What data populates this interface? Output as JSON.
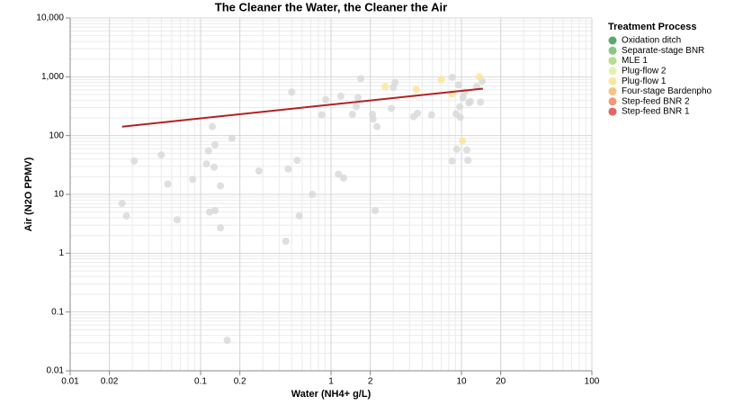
{
  "chart_data": {
    "type": "scatter",
    "title": "The Cleaner the Water, the Cleaner the Air",
    "x_label": "Water (NH4+ g/L)",
    "y_label": "Air (N2O PPMV)",
    "x_log": true,
    "y_log": true,
    "grid": true,
    "minor_grid": true,
    "xlim": [
      0.01,
      100
    ],
    "xticks": [
      0.01,
      0.02,
      0.1,
      0.2,
      1,
      2,
      10,
      20,
      100
    ],
    "ylim": [
      0.01,
      10000
    ],
    "yticks": [
      0.01,
      0.1,
      1,
      10,
      100,
      {
        "value": 1000,
        "label": "1,000"
      },
      {
        "value": 10000,
        "label": "10,000"
      }
    ],
    "legend_title": "Treatment Process",
    "legend_position": "right",
    "background_points": {
      "color": "#d9d9d9",
      "x": [
        0.025,
        0.027,
        0.031,
        0.05,
        0.056,
        0.066,
        0.087,
        0.111,
        0.115,
        0.117,
        0.123,
        0.127,
        0.129,
        0.129,
        0.142,
        0.142,
        0.16,
        0.174,
        0.28,
        0.45,
        0.47,
        0.5,
        0.55,
        0.57,
        0.72,
        0.85,
        0.91,
        1.14,
        1.19,
        1.25,
        1.46,
        1.56,
        1.61,
        1.69,
        2.08,
        2.1,
        2.18,
        2.25,
        2.9,
        3.0,
        3.1,
        4.3,
        4.6,
        5.9,
        8.5,
        8.5,
        9.2,
        9.1,
        9.5,
        9.7,
        9.8,
        10.3,
        10.6,
        11.0,
        11.2,
        11.4,
        11.7,
        13.1,
        14,
        14.4
      ],
      "y": [
        7,
        4.3,
        37,
        47,
        15,
        3.7,
        18,
        33,
        55,
        5,
        142,
        29,
        70,
        5.3,
        14,
        2.7,
        0.033,
        90,
        25,
        1.6,
        27,
        550,
        38,
        4.3,
        10,
        225,
        410,
        22,
        470,
        19,
        230,
        310,
        445,
        930,
        230,
        190,
        5.3,
        142,
        290,
        660,
        800,
        210,
        240,
        225,
        37,
        980,
        59,
        235,
        730,
        310,
        205,
        440,
        550,
        57,
        38,
        360,
        380,
        680,
        370,
        840
      ]
    },
    "series": [
      {
        "name": "Oxidation ditch",
        "color": "#5aa86b",
        "x": [],
        "y": []
      },
      {
        "name": "Separate-stage BNR",
        "color": "#86c784",
        "x": [],
        "y": []
      },
      {
        "name": "MLE 1",
        "color": "#b8de91",
        "x": [],
        "y": []
      },
      {
        "name": "Plug-flow 2",
        "color": "#e6f0b2",
        "x": [],
        "y": []
      },
      {
        "name": "Plug-flow 1",
        "color": "#fde59c",
        "x": [
          2.6,
          4.5,
          7.0,
          8.5,
          10.2,
          13.7
        ],
        "y": [
          680,
          610,
          900,
          510,
          81,
          1000
        ]
      },
      {
        "name": "Four-stage Bardenpho",
        "color": "#f8c187",
        "x": [],
        "y": []
      },
      {
        "name": "Step-feed BNR 2",
        "color": "#f09a72",
        "x": [],
        "y": []
      },
      {
        "name": "Step-feed BNR 1",
        "color": "#e06763",
        "x": [],
        "y": []
      }
    ],
    "trend": {
      "color": "#b22222",
      "x": [
        0.025,
        14.6
      ],
      "y": [
        142,
        630
      ]
    }
  }
}
